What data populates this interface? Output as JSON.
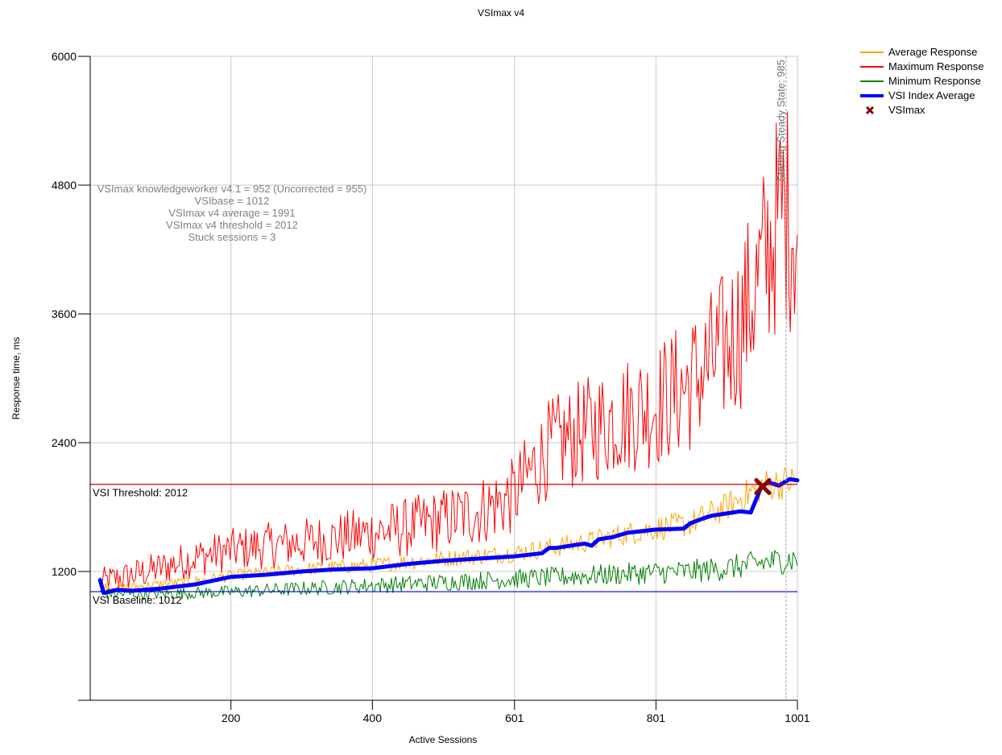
{
  "chart_data": {
    "type": "line",
    "title": "VSImax v4",
    "xlabel": "Active Sessions",
    "ylabel": "Response time, ms",
    "xlim": [
      1,
      1001
    ],
    "ylim": [
      0,
      6000
    ],
    "x_ticks": [
      200,
      400,
      601,
      801,
      1001
    ],
    "y_ticks": [
      1200,
      2400,
      3600,
      4800,
      6000
    ],
    "grid": true,
    "legend_position": "top-right",
    "colors": {
      "average": "#ffa500",
      "maximum": "#ff0000",
      "minimum": "#008000",
      "vsi_index": "#0000ff",
      "vsimax": "#8b0000",
      "threshold": "#c80000",
      "baseline": "#0000dd",
      "steady_state": "#a0a0a0"
    },
    "legend": [
      {
        "label": "Average Response",
        "color": "#ffa500",
        "symbol": "line"
      },
      {
        "label": "Maximum Response",
        "color": "#ff0000",
        "symbol": "line"
      },
      {
        "label": "Minimum Response",
        "color": "#008000",
        "symbol": "line"
      },
      {
        "label": "VSI Index Average",
        "color": "#0000ff",
        "symbol": "thick-line"
      },
      {
        "label": "VSImax",
        "color": "#8b0000",
        "symbol": "x-marker"
      }
    ],
    "annotations": [
      "VSImax knowledgeworker v4.1 = 952 (Uncorrected = 955)",
      "VSIbase = 1012",
      "VSImax v4 average = 1991",
      "VSImax v4 threshold = 2012",
      "Stuck sessions = 3"
    ],
    "threshold": {
      "label": "VSI Threshold: 2012",
      "value": 2012
    },
    "baseline": {
      "label": "VSI Baseline: 1012",
      "value": 1012
    },
    "steady_state": {
      "label": "Starting Steady State: 985",
      "x": 985
    },
    "vsimax_point": {
      "x": 952,
      "y": 1991
    },
    "series": [
      {
        "name": "Maximum Response",
        "color": "#ff0000",
        "width": 1,
        "noise": 0.12,
        "x": [
          15,
          50,
          100,
          150,
          200,
          250,
          300,
          350,
          400,
          450,
          500,
          550,
          600,
          620,
          650,
          700,
          750,
          800,
          850,
          880,
          900,
          920,
          940,
          960,
          980,
          1001
        ],
        "y": [
          1100,
          1150,
          1230,
          1330,
          1400,
          1440,
          1470,
          1510,
          1560,
          1610,
          1680,
          1760,
          1900,
          2100,
          2350,
          2500,
          2650,
          2750,
          2950,
          3150,
          3300,
          3500,
          3800,
          4200,
          4600,
          4400
        ]
      },
      {
        "name": "Average Response",
        "color": "#ffa500",
        "width": 1,
        "noise": 0.04,
        "x": [
          15,
          50,
          100,
          150,
          200,
          300,
          400,
          500,
          600,
          700,
          750,
          800,
          850,
          900,
          950,
          1001
        ],
        "y": [
          1060,
          1050,
          1080,
          1110,
          1160,
          1220,
          1260,
          1320,
          1370,
          1470,
          1540,
          1600,
          1650,
          1800,
          2000,
          2050
        ]
      },
      {
        "name": "Minimum Response",
        "color": "#008000",
        "width": 1,
        "noise": 0.05,
        "x": [
          15,
          50,
          100,
          200,
          300,
          400,
          500,
          600,
          700,
          800,
          850,
          900,
          950,
          1001
        ],
        "y": [
          1000,
          990,
          990,
          1010,
          1040,
          1070,
          1100,
          1130,
          1160,
          1190,
          1200,
          1230,
          1280,
          1320
        ]
      },
      {
        "name": "VSI Index Average",
        "color": "#0000ff",
        "width": 5,
        "noise": 0,
        "x": [
          15,
          20,
          40,
          60,
          100,
          150,
          200,
          250,
          300,
          350,
          400,
          450,
          500,
          550,
          600,
          640,
          650,
          660,
          700,
          710,
          720,
          740,
          760,
          800,
          840,
          850,
          870,
          880,
          900,
          920,
          935,
          950,
          960,
          975,
          990,
          1001
        ],
        "y": [
          1120,
          1000,
          1030,
          1020,
          1040,
          1080,
          1150,
          1170,
          1200,
          1220,
          1230,
          1270,
          1300,
          1320,
          1340,
          1370,
          1420,
          1420,
          1460,
          1440,
          1500,
          1520,
          1560,
          1590,
          1600,
          1650,
          1700,
          1720,
          1740,
          1760,
          1750,
          1990,
          2030,
          2000,
          2060,
          2050
        ]
      }
    ]
  }
}
